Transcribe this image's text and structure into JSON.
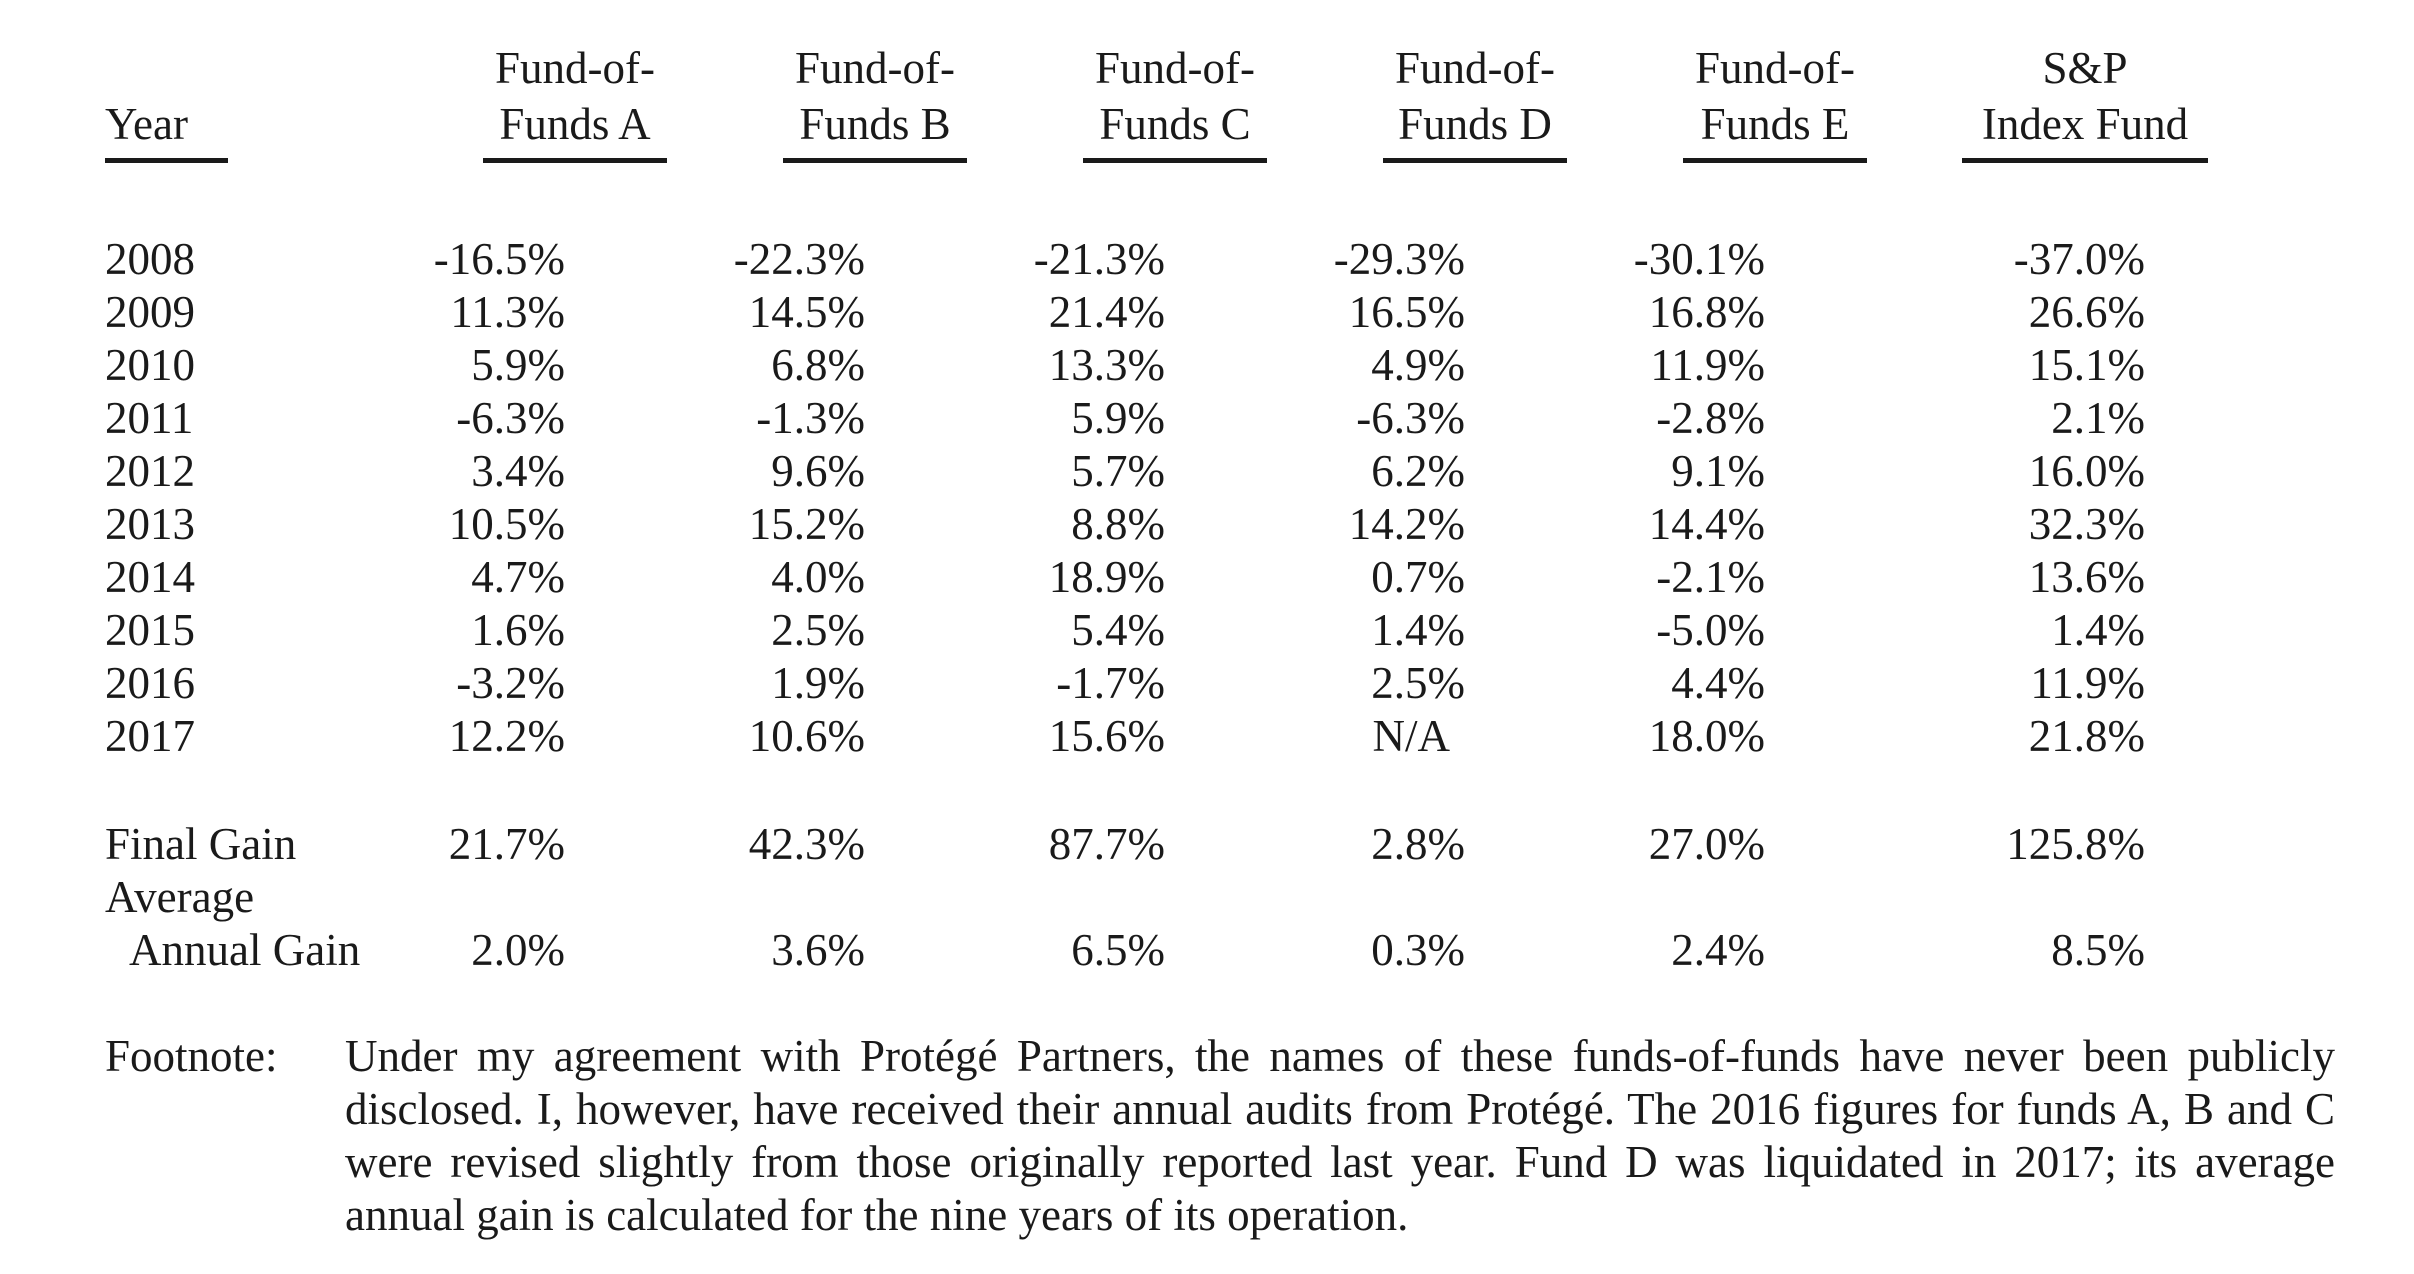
{
  "headers": {
    "year": "Year",
    "fund_a": [
      "Fund-of-",
      "Funds A"
    ],
    "fund_b": [
      "Fund-of-",
      "Funds B"
    ],
    "fund_c": [
      "Fund-of-",
      "Funds C"
    ],
    "fund_d": [
      "Fund-of-",
      "Funds D"
    ],
    "fund_e": [
      "Fund-of-",
      "Funds E"
    ],
    "sp": [
      "S&P",
      "Index Fund"
    ]
  },
  "rows": [
    {
      "year": "2008",
      "a": "-16.5%",
      "b": "-22.3%",
      "c": "-21.3%",
      "d": "-29.3%",
      "e": "-30.1%",
      "sp": "-37.0%"
    },
    {
      "year": "2009",
      "a": "11.3%",
      "b": "14.5%",
      "c": "21.4%",
      "d": "16.5%",
      "e": "16.8%",
      "sp": "26.6%"
    },
    {
      "year": "2010",
      "a": "5.9%",
      "b": "6.8%",
      "c": "13.3%",
      "d": "4.9%",
      "e": "11.9%",
      "sp": "15.1%"
    },
    {
      "year": "2011",
      "a": "-6.3%",
      "b": "-1.3%",
      "c": "5.9%",
      "d": "-6.3%",
      "e": "-2.8%",
      "sp": "2.1%"
    },
    {
      "year": "2012",
      "a": "3.4%",
      "b": "9.6%",
      "c": "5.7%",
      "d": "6.2%",
      "e": "9.1%",
      "sp": "16.0%"
    },
    {
      "year": "2013",
      "a": "10.5%",
      "b": "15.2%",
      "c": "8.8%",
      "d": "14.2%",
      "e": "14.4%",
      "sp": "32.3%"
    },
    {
      "year": "2014",
      "a": "4.7%",
      "b": "4.0%",
      "c": "18.9%",
      "d": "0.7%",
      "e": "-2.1%",
      "sp": "13.6%"
    },
    {
      "year": "2015",
      "a": "1.6%",
      "b": "2.5%",
      "c": "5.4%",
      "d": "1.4%",
      "e": "-5.0%",
      "sp": "1.4%"
    },
    {
      "year": "2016",
      "a": "-3.2%",
      "b": "1.9%",
      "c": "-1.7%",
      "d": "2.5%",
      "e": "4.4%",
      "sp": "11.9%"
    },
    {
      "year": "2017",
      "a": "12.2%",
      "b": "10.6%",
      "c": "15.6%",
      "d": "N/A",
      "e": "18.0%",
      "sp": "21.8%"
    }
  ],
  "final_gain": {
    "label": "Final Gain",
    "a": "21.7%",
    "b": "42.3%",
    "c": "87.7%",
    "d": "2.8%",
    "e": "27.0%",
    "sp": "125.8%"
  },
  "average_annual_gain": {
    "label_line1": "Average",
    "label_line2": "Annual Gain",
    "a": "2.0%",
    "b": "3.6%",
    "c": "6.5%",
    "d": "0.3%",
    "e": "2.4%",
    "sp": "8.5%"
  },
  "footnote": {
    "label": "Footnote:",
    "text": "Under my agreement with Protégé Partners, the names of these funds-of-funds have never been publicly disclosed. I, however, have received their annual audits from Protégé. The 2016 figures for funds A, B and C were revised slightly from those originally reported last year. Fund D was liquidated in 2017; its average annual gain is calculated for the nine years of its operation."
  }
}
